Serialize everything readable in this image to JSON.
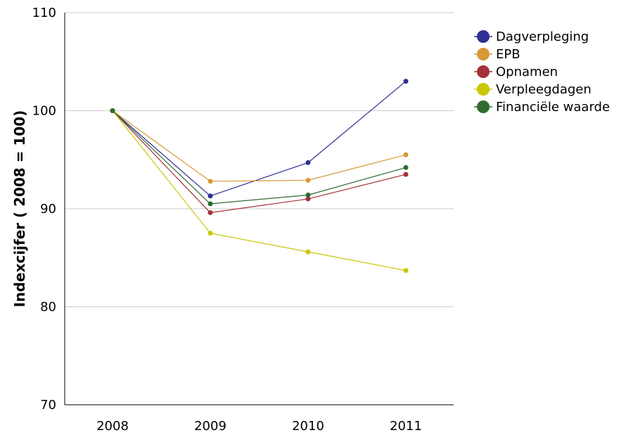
{
  "chart_data": {
    "type": "line",
    "title": "",
    "xlabel": "",
    "ylabel": "Indexcijfer ( 2008 = 100)",
    "categories": [
      "2008",
      "2009",
      "2010",
      "2011"
    ],
    "ylim": [
      70,
      110
    ],
    "yticks": [
      70,
      80,
      90,
      100,
      110
    ],
    "grid": true,
    "legend_position": "top-right",
    "series": [
      {
        "name": "Dagverpleging",
        "color": "#2e3192",
        "values": [
          100,
          91.3,
          94.7,
          103.0
        ]
      },
      {
        "name": "EPB",
        "color": "#d69a35",
        "values": [
          100,
          92.8,
          92.9,
          95.5
        ]
      },
      {
        "name": "Opnamen",
        "color": "#a3323a",
        "values": [
          100,
          89.6,
          91.0,
          93.5
        ]
      },
      {
        "name": "Verpleegdagen",
        "color": "#c9c800",
        "values": [
          100,
          87.5,
          85.6,
          83.7
        ]
      },
      {
        "name": "Financiële waarde",
        "color": "#2f6b2f",
        "values": [
          100,
          90.5,
          91.4,
          94.2
        ]
      }
    ]
  }
}
